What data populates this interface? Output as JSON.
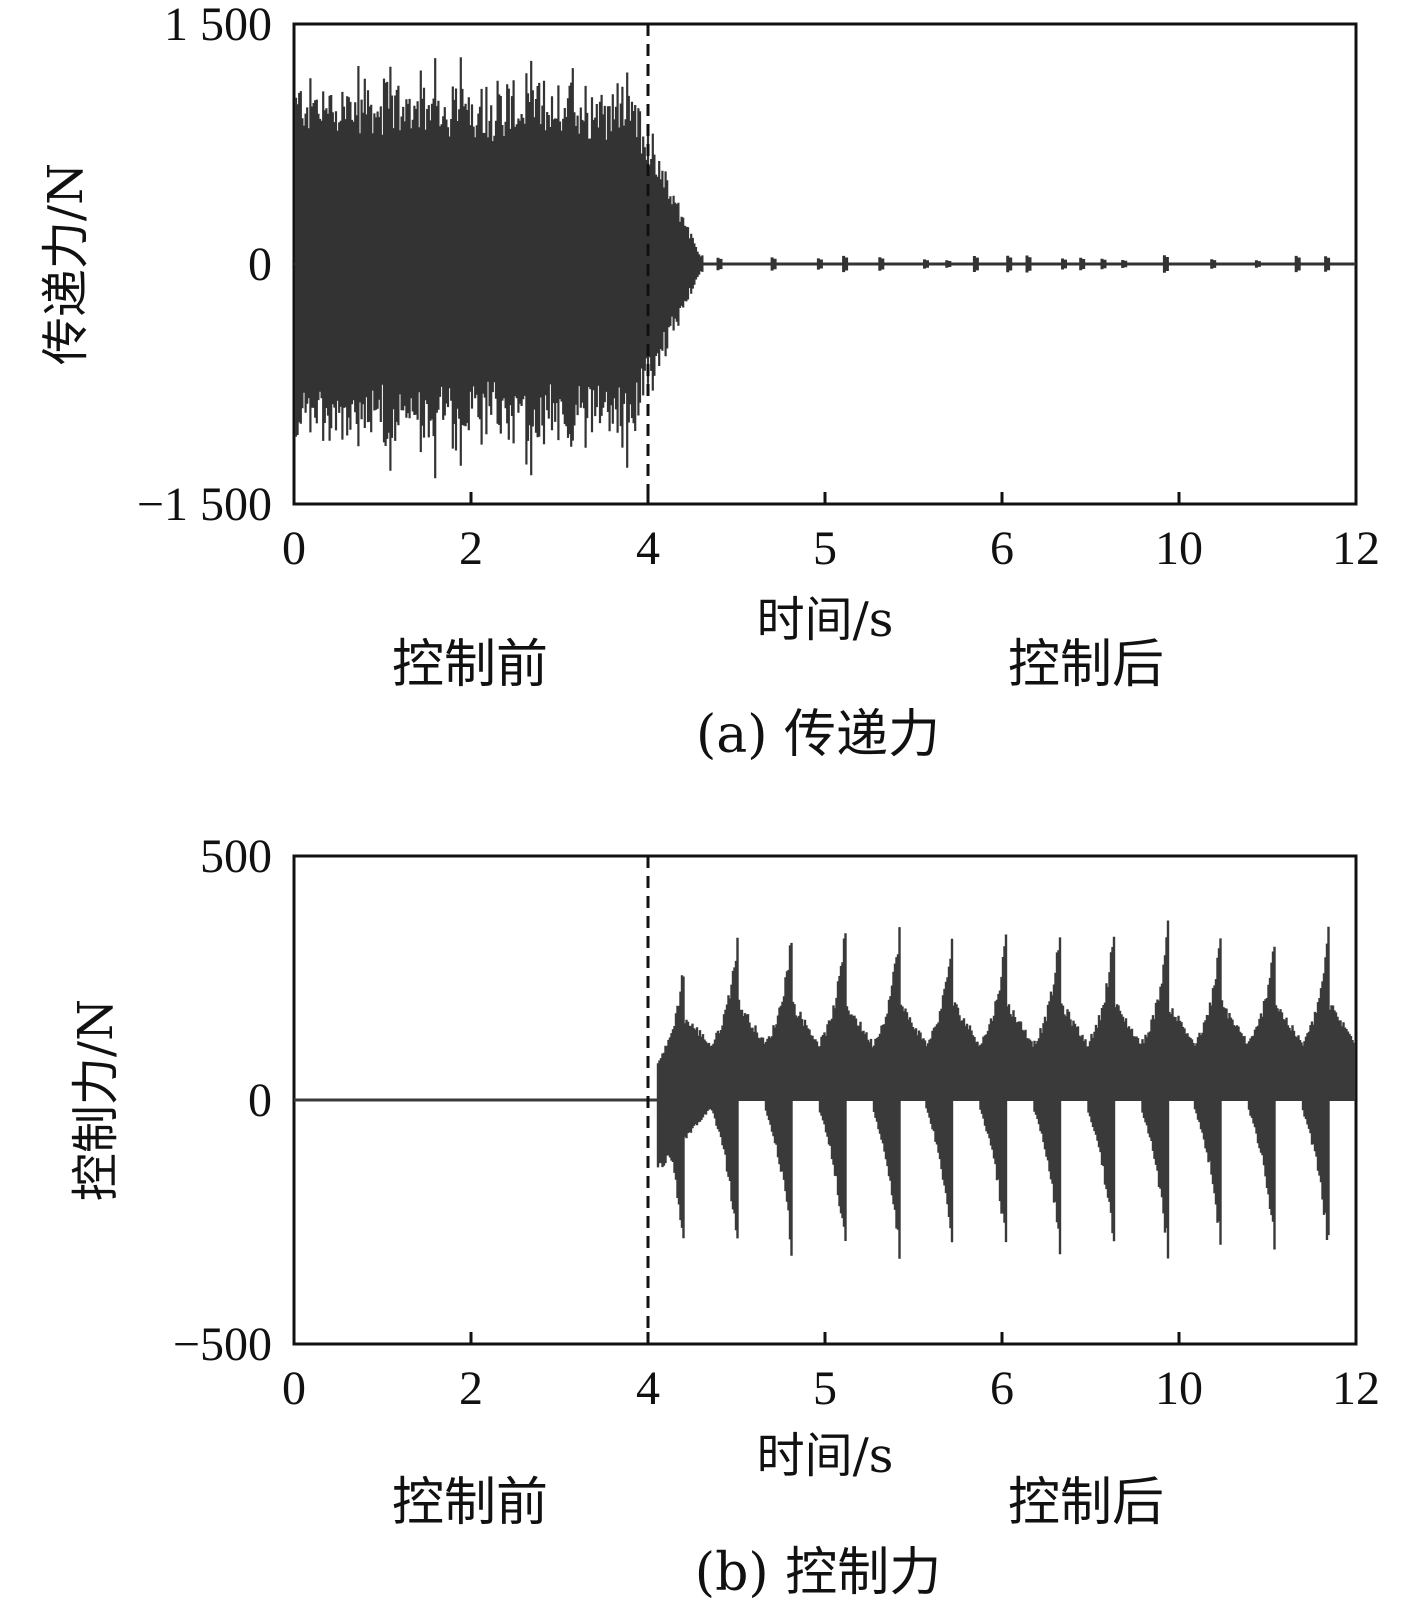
{
  "chart_data": [
    {
      "type": "line",
      "panel": "(a)",
      "caption": "(a) 传递力",
      "xlabel": "时间/s",
      "ylabel": "传递力/N",
      "x_tick_labels": [
        "0",
        "2",
        "4",
        "5",
        "6",
        "10",
        "12"
      ],
      "y_ticks": [
        {
          "value": 1500,
          "label": "1 500"
        },
        {
          "value": 0,
          "label": "0"
        },
        {
          "value": -1500,
          "label": "−1 500"
        }
      ],
      "ylim": [
        -1500,
        1500
      ],
      "xlim": [
        0,
        12
      ],
      "control_switch_x": 4,
      "region_labels": {
        "before": "控制前",
        "after": "控制后"
      },
      "series": [
        {
          "envelope": {
            "before_control": {
              "upper_peak": 1400,
              "lower_peak": -1280,
              "typical_amplitude": 1000
            },
            "decay_end_x": 4.6,
            "after_control": {
              "amplitude": 40
            }
          },
          "color": "#333333"
        }
      ],
      "grid": false
    },
    {
      "type": "line",
      "panel": "(b)",
      "caption": "(b) 控制力",
      "xlabel": "时间/s",
      "ylabel": "控制力/N",
      "x_tick_labels": [
        "0",
        "2",
        "4",
        "5",
        "6",
        "10",
        "12"
      ],
      "y_ticks": [
        {
          "value": 500,
          "label": "500"
        },
        {
          "value": 0,
          "label": "0"
        },
        {
          "value": -500,
          "label": "−500"
        }
      ],
      "ylim": [
        -500,
        500
      ],
      "xlim": [
        0,
        12
      ],
      "control_switch_x": 4,
      "region_labels": {
        "before": "控制前",
        "after": "控制后"
      },
      "series": [
        {
          "envelope": {
            "before_control": {
              "amplitude": 0
            },
            "start_x": 4.1,
            "after_control": {
              "base_upper": 220,
              "base_lower": -200,
              "burst_upper": 370,
              "burst_lower": -340,
              "burst_count": 13
            }
          },
          "color": "#3a3a3a"
        }
      ],
      "grid": false
    }
  ]
}
